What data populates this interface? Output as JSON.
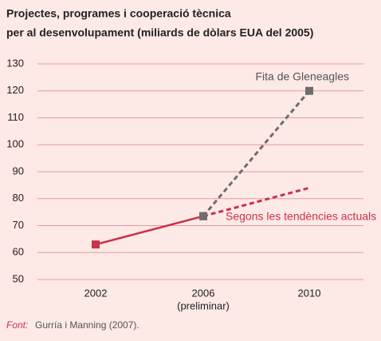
{
  "chart_data": {
    "type": "line",
    "title": [
      "Projectes, programes i cooperació tècnica",
      "per al desenvolupament (miliards de dòlars EUA del 2005)"
    ],
    "categories": [
      "2002",
      "2006",
      "2010"
    ],
    "category_notes": [
      null,
      "(preliminar)",
      null
    ],
    "series": [
      {
        "color": "#c8324a",
        "dashed": false,
        "markers": true,
        "values": [
          63,
          73.5,
          null
        ]
      },
      {
        "name": "Segons les tendències actuals",
        "color": "#c8324a",
        "dashed": true,
        "markers": false,
        "values": [
          null,
          73.5,
          84
        ]
      },
      {
        "name": "Fita de Gleneagles",
        "color": "#6d6d6d",
        "dashed": true,
        "markers": true,
        "values": [
          null,
          73.5,
          120
        ]
      }
    ],
    "ylim": [
      50,
      130
    ],
    "yticks": [
      50,
      60,
      70,
      80,
      90,
      100,
      110,
      120,
      130
    ],
    "grid": true,
    "source_label": "Font:",
    "source": "Gurría i Manning (2007)."
  }
}
